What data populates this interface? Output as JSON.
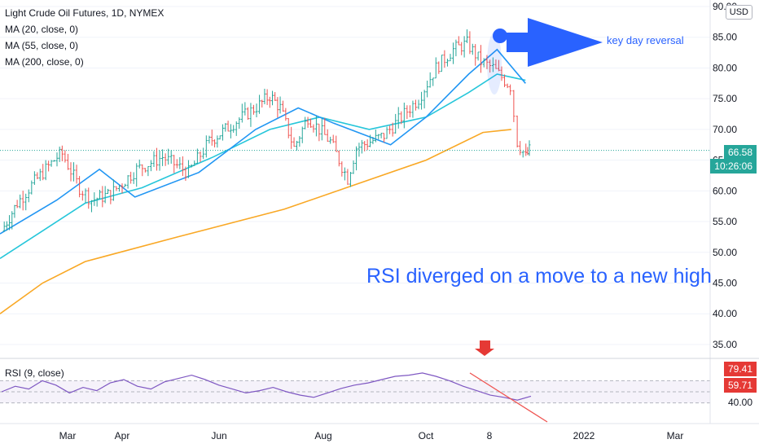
{
  "chart_data": {
    "type": "candlestick",
    "title": "Light Crude Oil Futures, 1D, NYMEX",
    "currency": "USD",
    "indicators": [
      "MA (20, close, 0)",
      "MA (55, close, 0)",
      "MA (200, close, 0)"
    ],
    "price_axis": {
      "ticks": [
        "90.00",
        "85.00",
        "80.00",
        "75.00",
        "70.00",
        "65.00",
        "60.00",
        "55.00",
        "50.00",
        "45.00",
        "40.00",
        "35.00"
      ],
      "ylim": [
        33,
        90
      ]
    },
    "time_axis": {
      "ticks": [
        "Mar",
        "Apr",
        "Jun",
        "Aug",
        "Oct",
        "8",
        "2022",
        "Mar"
      ]
    },
    "last_price": {
      "value": "66.58",
      "countdown": "10:26:06"
    },
    "price_path": [
      [
        "2021-02-01",
        53.5
      ],
      [
        "2021-02-10",
        58
      ],
      [
        "2021-02-20",
        61.5
      ],
      [
        "2021-03-05",
        65.5
      ],
      [
        "2021-03-08",
        66
      ],
      [
        "2021-03-18",
        60.5
      ],
      [
        "2021-03-25",
        58.5
      ],
      [
        "2021-04-05",
        59.5
      ],
      [
        "2021-04-20",
        63.5
      ],
      [
        "2021-05-05",
        65.5
      ],
      [
        "2021-05-20",
        63
      ],
      [
        "2021-06-01",
        68
      ],
      [
        "2021-06-15",
        71
      ],
      [
        "2021-06-30",
        74
      ],
      [
        "2021-07-06",
        75.5
      ],
      [
        "2021-07-12",
        73.5
      ],
      [
        "2021-07-20",
        67
      ],
      [
        "2021-07-28",
        72
      ],
      [
        "2021-08-10",
        68
      ],
      [
        "2021-08-20",
        62
      ],
      [
        "2021-08-25",
        67
      ],
      [
        "2021-09-10",
        69
      ],
      [
        "2021-09-30",
        75
      ],
      [
        "2021-10-10",
        80
      ],
      [
        "2021-10-20",
        83
      ],
      [
        "2021-10-28",
        84
      ],
      [
        "2021-11-05",
        81
      ],
      [
        "2021-11-12",
        80
      ],
      [
        "2021-11-22",
        77
      ],
      [
        "2021-11-26",
        68
      ],
      [
        "2021-12-01",
        65.5
      ],
      [
        "2021-12-03",
        66.58
      ]
    ],
    "ma20": [
      [
        0,
        53
      ],
      [
        0.08,
        58.5
      ],
      [
        0.14,
        63.5
      ],
      [
        0.19,
        59
      ],
      [
        0.28,
        63
      ],
      [
        0.36,
        70
      ],
      [
        0.42,
        73.5
      ],
      [
        0.47,
        71
      ],
      [
        0.55,
        67.5
      ],
      [
        0.6,
        72
      ],
      [
        0.66,
        79
      ],
      [
        0.7,
        83
      ],
      [
        0.74,
        77.5
      ]
    ],
    "ma55": [
      [
        0,
        49
      ],
      [
        0.06,
        53.5
      ],
      [
        0.12,
        58
      ],
      [
        0.2,
        60.5
      ],
      [
        0.3,
        65.5
      ],
      [
        0.38,
        70
      ],
      [
        0.45,
        72
      ],
      [
        0.52,
        70
      ],
      [
        0.6,
        72
      ],
      [
        0.66,
        76
      ],
      [
        0.7,
        79
      ],
      [
        0.74,
        78
      ]
    ],
    "ma200": [
      [
        0,
        40
      ],
      [
        0.06,
        45
      ],
      [
        0.12,
        48.5
      ],
      [
        0.25,
        52.5
      ],
      [
        0.4,
        57
      ],
      [
        0.5,
        61
      ],
      [
        0.6,
        65
      ],
      [
        0.68,
        69.5
      ],
      [
        0.72,
        70
      ]
    ],
    "rsi": {
      "label": "RSI (9, close)",
      "badges": [
        "79.41",
        "59.71",
        "40.00"
      ],
      "values": [
        50,
        60,
        55,
        70,
        62,
        48,
        58,
        52,
        66,
        72,
        60,
        55,
        68,
        74,
        80,
        72,
        62,
        55,
        48,
        52,
        58,
        50,
        44,
        40,
        48,
        56,
        62,
        66,
        72,
        78,
        80,
        84,
        78,
        70,
        60,
        52,
        44,
        40,
        35,
        42
      ],
      "bands": [
        30,
        70
      ]
    },
    "annotations": [
      "key day reversal",
      "RSI diverged on a move to a new high"
    ]
  },
  "colors": {
    "up": "#26a69a",
    "down": "#ef5350",
    "ma20": "#2196f3",
    "ma55": "#26c6da",
    "ma200": "#f9a825",
    "accent": "#2962ff",
    "rsi": "#7e57c2",
    "arrow": "#e53935"
  }
}
